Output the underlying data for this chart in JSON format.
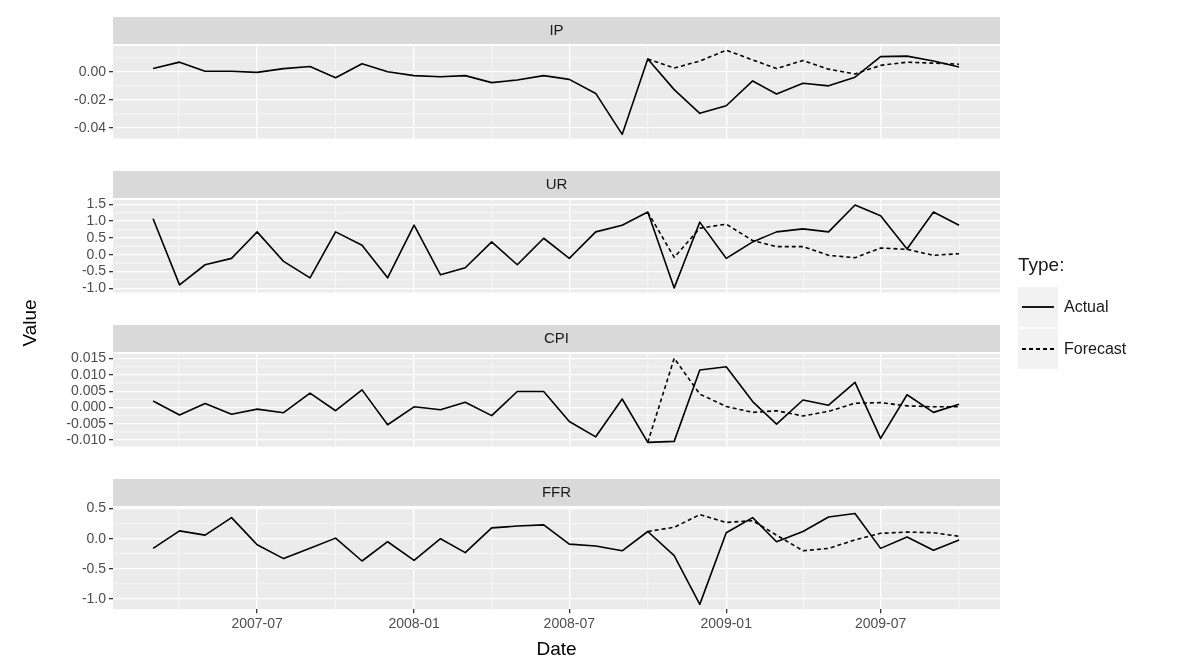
{
  "chart_data": [
    {
      "type": "line",
      "title": "IP",
      "tick_labels": "y",
      "grid": true,
      "x": [
        "2007-03",
        "2007-04",
        "2007-05",
        "2007-06",
        "2007-07",
        "2007-08",
        "2007-09",
        "2007-10",
        "2007-11",
        "2007-12",
        "2008-01",
        "2008-02",
        "2008-03",
        "2008-04",
        "2008-05",
        "2008-06",
        "2008-07",
        "2008-08",
        "2008-09",
        "2008-10",
        "2008-11",
        "2008-12",
        "2009-01",
        "2009-02",
        "2009-03",
        "2009-04",
        "2009-05",
        "2009-06",
        "2009-07",
        "2009-08",
        "2009-09",
        "2009-10"
      ],
      "xlim": [
        "2007-01-13",
        "2009-11-18"
      ],
      "xticks": [
        "2007-07",
        "2008-01",
        "2008-07",
        "2009-01",
        "2009-07"
      ],
      "ylim": [
        -0.0476,
        0.0184
      ],
      "yticks": [
        {
          "value": -0.04,
          "label": "-0.04"
        },
        {
          "value": -0.02,
          "label": "-0.02"
        },
        {
          "value": 0,
          "label": "0.00"
        }
      ],
      "series": [
        {
          "color": "#000000",
          "line_style": "solid",
          "values": [
            0.0023,
            0.0069,
            0.0004,
            0.0004,
            -0.0004,
            0.0023,
            0.0038,
            -0.0042,
            0.0058,
            0,
            -0.0027,
            -0.0035,
            -0.0027,
            -0.0077,
            -0.0058,
            -0.0027,
            -0.0054,
            -0.0154,
            -0.0446,
            0.0092,
            -0.0127,
            -0.0296,
            -0.0242,
            -0.0065,
            -0.0158,
            -0.0081,
            -0.01,
            -0.0038,
            0.0108,
            0.0112,
            0.0077,
            0.0035
          ]
        },
        {
          "color": "#000000",
          "line_style": "dashed",
          "values": [
            null,
            null,
            null,
            null,
            null,
            null,
            null,
            null,
            null,
            null,
            null,
            null,
            null,
            null,
            null,
            null,
            null,
            null,
            null,
            0.0092,
            0.0027,
            0.0077,
            0.0154,
            0.0085,
            0.0023,
            0.0081,
            0.0019,
            -0.0015,
            0.0046,
            0.0069,
            0.0062,
            0.0054
          ]
        }
      ]
    },
    {
      "type": "line",
      "title": "UR",
      "tick_labels": "y",
      "grid": true,
      "x": [
        "2007-03",
        "2007-04",
        "2007-05",
        "2007-06",
        "2007-07",
        "2007-08",
        "2007-09",
        "2007-10",
        "2007-11",
        "2007-12",
        "2008-01",
        "2008-02",
        "2008-03",
        "2008-04",
        "2008-05",
        "2008-06",
        "2008-07",
        "2008-08",
        "2008-09",
        "2008-10",
        "2008-11",
        "2008-12",
        "2009-01",
        "2009-02",
        "2009-03",
        "2009-04",
        "2009-05",
        "2009-06",
        "2009-07",
        "2009-08",
        "2009-09",
        "2009-10"
      ],
      "xlim": [
        "2007-01-13",
        "2009-11-18"
      ],
      "xticks": [
        "2007-07",
        "2008-01",
        "2008-07",
        "2009-01",
        "2009-07"
      ],
      "ylim": [
        -1.13,
        1.63
      ],
      "yticks": [
        {
          "value": -1,
          "label": "-1.0"
        },
        -0.5,
        {
          "value": 0,
          "label": "0.0"
        },
        0.5,
        {
          "value": 1,
          "label": "1.0"
        },
        1.5
      ],
      "series": [
        {
          "color": "#000000",
          "line_style": "solid",
          "values": [
            1.07,
            -0.9,
            -0.3,
            -0.11,
            0.68,
            -0.2,
            -0.69,
            0.68,
            0.28,
            -0.69,
            0.88,
            -0.6,
            -0.39,
            0.38,
            -0.3,
            0.49,
            -0.11,
            0.68,
            0.88,
            1.27,
            -0.99,
            0.97,
            -0.11,
            0.38,
            0.68,
            0.77,
            0.68,
            1.48,
            1.16,
            0.17,
            1.27,
            0.88
          ]
        },
        {
          "color": "#000000",
          "line_style": "dashed",
          "values": [
            null,
            null,
            null,
            null,
            null,
            null,
            null,
            null,
            null,
            null,
            null,
            null,
            null,
            null,
            null,
            null,
            null,
            null,
            null,
            1.27,
            -0.08,
            0.79,
            0.91,
            0.42,
            0.24,
            0.24,
            -0.02,
            -0.09,
            0.2,
            0.16,
            -0.02,
            0.03
          ]
        }
      ]
    },
    {
      "type": "line",
      "title": "CPI",
      "ylabel": "Value",
      "legend": "right",
      "legend_title": "Type:",
      "tick_labels": "y",
      "grid": true,
      "x": [
        "2007-03",
        "2007-04",
        "2007-05",
        "2007-06",
        "2007-07",
        "2007-08",
        "2007-09",
        "2007-10",
        "2007-11",
        "2007-12",
        "2008-01",
        "2008-02",
        "2008-03",
        "2008-04",
        "2008-05",
        "2008-06",
        "2008-07",
        "2008-08",
        "2008-09",
        "2008-10",
        "2008-11",
        "2008-12",
        "2009-01",
        "2009-02",
        "2009-03",
        "2009-04",
        "2009-05",
        "2009-06",
        "2009-07",
        "2009-08",
        "2009-09",
        "2009-10"
      ],
      "xlim": [
        "2007-01-13",
        "2009-11-18"
      ],
      "xticks": [
        "2007-07",
        "2008-01",
        "2008-07",
        "2009-01",
        "2009-07"
      ],
      "ylim": [
        -0.012,
        0.0164
      ],
      "yticks": [
        {
          "value": -0.01,
          "label": "-0.010"
        },
        -0.005,
        {
          "value": 0,
          "label": "0.000"
        },
        0.005,
        {
          "value": 0.01,
          "label": "0.010"
        },
        0.015
      ],
      "series": [
        {
          "name": "Actual",
          "color": "#000000",
          "line_style": "solid",
          "values": [
            0.002,
            -0.0023,
            0.0012,
            -0.0021,
            -0.0005,
            -0.0016,
            0.0044,
            -0.001,
            0.0054,
            -0.0053,
            0.0002,
            -0.0007,
            0.0016,
            -0.0025,
            0.0049,
            0.0049,
            -0.0043,
            -0.009,
            0.0026,
            -0.0107,
            -0.0104,
            0.0115,
            0.0125,
            0.0018,
            -0.0051,
            0.0023,
            0.0007,
            0.0077,
            -0.0095,
            0.0039,
            -0.0015,
            0.001
          ]
        },
        {
          "name": "Forecast",
          "color": "#000000",
          "line_style": "dashed",
          "values": [
            null,
            null,
            null,
            null,
            null,
            null,
            null,
            null,
            null,
            null,
            null,
            null,
            null,
            null,
            null,
            null,
            null,
            null,
            null,
            -0.0107,
            0.0151,
            0.0041,
            0.0003,
            -0.0015,
            -0.001,
            -0.0026,
            -0.0012,
            0.0013,
            0.0015,
            0.0005,
            0.0002,
            0.0002
          ]
        }
      ]
    },
    {
      "type": "line",
      "title": "FFR",
      "xlabel": "Date",
      "grid": true,
      "x": [
        "2007-03",
        "2007-04",
        "2007-05",
        "2007-06",
        "2007-07",
        "2007-08",
        "2007-09",
        "2007-10",
        "2007-11",
        "2007-12",
        "2008-01",
        "2008-02",
        "2008-03",
        "2008-04",
        "2008-05",
        "2008-06",
        "2008-07",
        "2008-08",
        "2008-09",
        "2008-10",
        "2008-11",
        "2008-12",
        "2009-01",
        "2009-02",
        "2009-03",
        "2009-04",
        "2009-05",
        "2009-06",
        "2009-07",
        "2009-08",
        "2009-09",
        "2009-10"
      ],
      "xlim": [
        "2007-01-13",
        "2009-11-18"
      ],
      "xticks": [
        "2007-07",
        "2008-01",
        "2008-07",
        "2009-01",
        "2009-07"
      ],
      "ylim": [
        -1.17,
        0.51
      ],
      "yticks": [
        {
          "value": -1,
          "label": "-1.0"
        },
        -0.5,
        {
          "value": 0,
          "label": "0.0"
        },
        0.5
      ],
      "series": [
        {
          "color": "#000000",
          "line_style": "solid",
          "values": [
            -0.16,
            0.13,
            0.06,
            0.35,
            -0.1,
            -0.33,
            -0.16,
            0.01,
            -0.37,
            -0.05,
            -0.36,
            0,
            -0.23,
            0.18,
            0.21,
            0.23,
            -0.09,
            -0.12,
            -0.2,
            0.12,
            -0.28,
            -1.09,
            0.1,
            0.35,
            -0.05,
            0.12,
            0.36,
            0.42,
            -0.16,
            0.03,
            -0.19,
            -0.02
          ]
        },
        {
          "color": "#000000",
          "line_style": "dashed",
          "values": [
            null,
            null,
            null,
            null,
            null,
            null,
            null,
            null,
            null,
            null,
            null,
            null,
            null,
            null,
            null,
            null,
            null,
            null,
            null,
            0.12,
            0.19,
            0.4,
            0.27,
            0.3,
            0.06,
            -0.2,
            -0.16,
            -0.02,
            0.09,
            0.11,
            0.1,
            0.04
          ]
        }
      ]
    }
  ]
}
